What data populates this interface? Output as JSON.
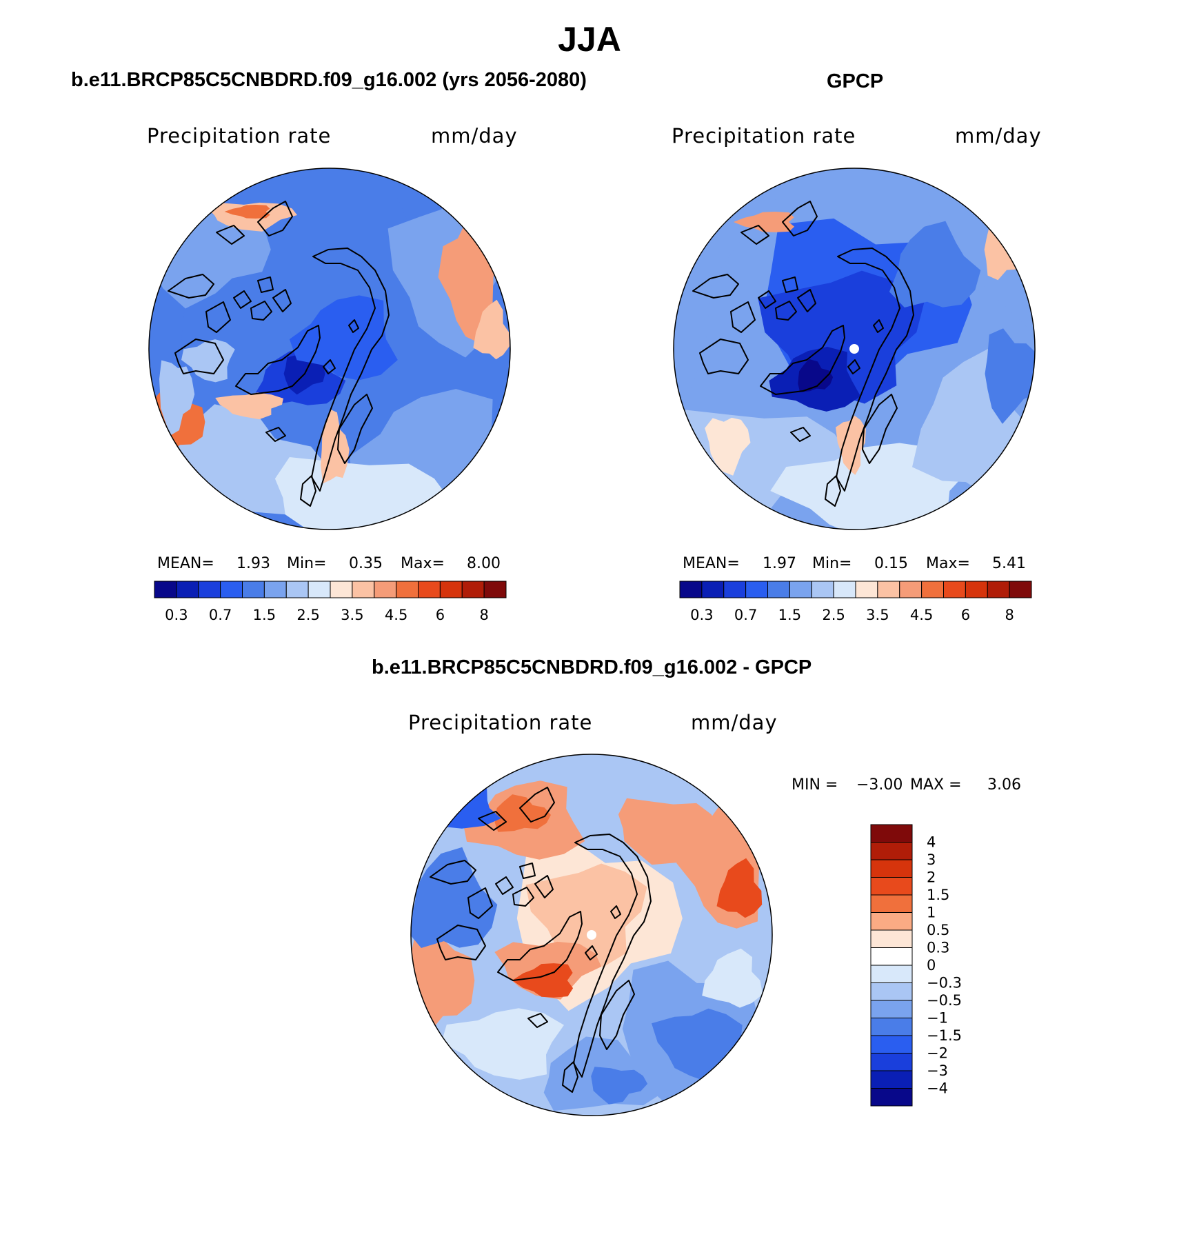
{
  "title": "JJA",
  "panels": [
    {
      "title": "b.e11.BRCP85C5CNBDRD.f09_g16.002 (yrs 2056-2080)",
      "variable": "Precipitation rate",
      "units": "mm/day",
      "mean_label": "MEAN=",
      "mean": "1.93",
      "min_label": "Min=",
      "min": "0.35",
      "max_label": "Max=",
      "max": "8.00"
    },
    {
      "title": "GPCP",
      "variable": "Precipitation rate",
      "units": "mm/day",
      "mean_label": "MEAN=",
      "mean": "1.97",
      "min_label": "Min=",
      "min": "0.15",
      "max_label": "Max=",
      "max": "5.41"
    },
    {
      "title": "b.e11.BRCP85C5CNBDRD.f09_g16.002 - GPCP",
      "variable": "Precipitation rate",
      "units": "mm/day",
      "min_label": "MIN =",
      "min": "−3.00",
      "max_label": "MAX =",
      "max": "3.06"
    }
  ],
  "abs_colorbar": {
    "colors": [
      "#08088a",
      "#0a1fb5",
      "#1a3fdc",
      "#2a5ef0",
      "#4a7de8",
      "#7aa3ee",
      "#aac6f4",
      "#d8e8fa",
      "#fde6d6",
      "#fbc2a4",
      "#f59c78",
      "#f0703c",
      "#e84a1c",
      "#d6340c",
      "#b01d08",
      "#7f0a0a"
    ],
    "labels": [
      "0.3",
      "0.7",
      "1.5",
      "2.5",
      "3.5",
      "4.5",
      "6",
      "8"
    ]
  },
  "diff_colorbar": {
    "colors_top_to_bottom": [
      "#7f0a0a",
      "#b01d08",
      "#d6340c",
      "#e84a1c",
      "#f0703c",
      "#fbab84",
      "#fde6d6",
      "#ffffff",
      "#d8e8fa",
      "#aac6f4",
      "#7aa3ee",
      "#4a7de8",
      "#2a5ef0",
      "#1a3fdc",
      "#0a1fb5",
      "#08088a"
    ],
    "labels": [
      "4",
      "3",
      "2",
      "1.5",
      "1",
      "0.5",
      "0.3",
      "0",
      "−0.3",
      "−0.5",
      "−1",
      "−1.5",
      "−2",
      "−3",
      "−4"
    ]
  }
}
